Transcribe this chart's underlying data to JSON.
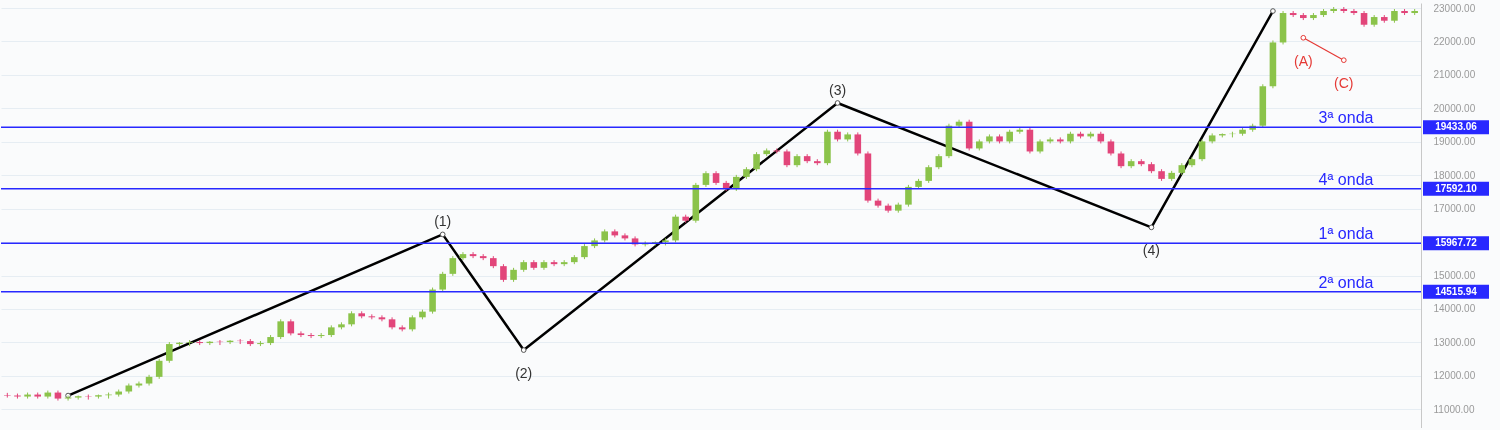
{
  "chart_data": {
    "type": "candlestick",
    "categories": [
      null,
      null,
      null,
      null,
      null,
      null,
      null,
      null,
      null,
      null,
      null,
      null,
      null,
      null,
      null,
      null,
      null,
      null,
      null,
      null,
      null,
      null,
      null,
      null,
      null,
      null,
      null,
      null,
      null,
      null,
      null,
      null,
      null,
      null,
      null,
      null,
      null,
      null,
      null,
      null,
      null,
      null,
      null,
      null,
      null,
      null,
      null,
      null,
      null,
      null,
      null,
      null,
      null,
      null,
      null,
      null,
      null,
      null,
      null,
      null,
      null,
      null,
      null,
      null,
      null,
      null,
      null,
      null,
      null,
      null,
      null,
      null,
      null,
      null,
      null,
      null,
      null,
      null,
      null,
      null,
      null,
      null,
      null,
      null,
      null,
      null,
      null,
      null,
      null,
      null,
      null,
      null,
      null,
      null,
      null,
      null,
      null,
      null,
      null,
      null,
      null,
      null,
      null,
      null,
      null,
      null,
      null,
      null,
      null,
      null,
      null,
      null,
      null,
      null,
      null,
      null,
      null,
      null,
      null,
      null,
      null,
      null,
      null,
      null,
      null,
      null,
      null,
      null,
      null,
      null,
      null,
      null,
      null,
      null,
      null,
      null,
      null,
      null,
      null,
      null
    ],
    "ohlc": [
      [
        11430,
        11490,
        11350,
        11410
      ],
      [
        11410,
        11470,
        11320,
        11380
      ],
      [
        11380,
        11500,
        11320,
        11440
      ],
      [
        11440,
        11500,
        11320,
        11380
      ],
      [
        11380,
        11560,
        11320,
        11500
      ],
      [
        11500,
        11560,
        11260,
        11320
      ],
      [
        11320,
        11410,
        11260,
        11350
      ],
      [
        11350,
        11410,
        11290,
        11390
      ],
      [
        11390,
        11440,
        11290,
        11380
      ],
      [
        11380,
        11440,
        11320,
        11420
      ],
      [
        11420,
        11500,
        11320,
        11440
      ],
      [
        11440,
        11590,
        11380,
        11530
      ],
      [
        11530,
        11770,
        11470,
        11710
      ],
      [
        11710,
        11830,
        11650,
        11770
      ],
      [
        11770,
        12030,
        11710,
        11970
      ],
      [
        11970,
        12510,
        11910,
        12450
      ],
      [
        12450,
        13010,
        12390,
        12950
      ],
      [
        12950,
        13010,
        12890,
        12990
      ],
      [
        12990,
        13070,
        12890,
        13010
      ],
      [
        13010,
        13070,
        12920,
        12980
      ],
      [
        12980,
        13040,
        12920,
        13020
      ],
      [
        13020,
        13070,
        12920,
        13010
      ],
      [
        13010,
        13070,
        12950,
        13050
      ],
      [
        13050,
        13100,
        12950,
        13040
      ],
      [
        13040,
        13100,
        12890,
        12950
      ],
      [
        12950,
        13040,
        12890,
        12980
      ],
      [
        12980,
        13220,
        12920,
        13160
      ],
      [
        13160,
        13690,
        13100,
        13630
      ],
      [
        13630,
        13690,
        13210,
        13270
      ],
      [
        13270,
        13330,
        13160,
        13220
      ],
      [
        13220,
        13280,
        13130,
        13190
      ],
      [
        13190,
        13280,
        13130,
        13220
      ],
      [
        13220,
        13510,
        13160,
        13450
      ],
      [
        13450,
        13600,
        13390,
        13540
      ],
      [
        13540,
        13930,
        13480,
        13870
      ],
      [
        13870,
        13930,
        13720,
        13780
      ],
      [
        13780,
        13840,
        13690,
        13750
      ],
      [
        13750,
        13810,
        13630,
        13690
      ],
      [
        13690,
        13750,
        13390,
        13450
      ],
      [
        13450,
        13510,
        13330,
        13390
      ],
      [
        13390,
        13810,
        13330,
        13750
      ],
      [
        13750,
        13980,
        13690,
        13920
      ],
      [
        13920,
        14640,
        13860,
        14580
      ],
      [
        14580,
        15110,
        14520,
        15050
      ],
      [
        15050,
        15580,
        14990,
        15520
      ],
      [
        15520,
        15700,
        15460,
        15640
      ],
      [
        15640,
        15700,
        15520,
        15580
      ],
      [
        15580,
        15640,
        15460,
        15520
      ],
      [
        15520,
        15580,
        15220,
        15280
      ],
      [
        15280,
        15340,
        14810,
        14870
      ],
      [
        14870,
        15230,
        14810,
        15170
      ],
      [
        15170,
        15460,
        15110,
        15400
      ],
      [
        15400,
        15460,
        15170,
        15230
      ],
      [
        15230,
        15460,
        15170,
        15400
      ],
      [
        15400,
        15460,
        15280,
        15340
      ],
      [
        15340,
        15460,
        15280,
        15400
      ],
      [
        15400,
        15610,
        15340,
        15550
      ],
      [
        15550,
        15940,
        15490,
        15880
      ],
      [
        15880,
        16110,
        15820,
        16050
      ],
      [
        16050,
        16380,
        15990,
        16320
      ],
      [
        16320,
        16380,
        16140,
        16200
      ],
      [
        16200,
        16260,
        16050,
        16110
      ],
      [
        16110,
        16170,
        15870,
        15930
      ],
      [
        15930,
        16020,
        15870,
        15960
      ],
      [
        15960,
        16020,
        15900,
        16000
      ],
      [
        16000,
        16110,
        15900,
        16050
      ],
      [
        16050,
        16820,
        15990,
        16760
      ],
      [
        16760,
        16820,
        16580,
        16640
      ],
      [
        16640,
        17770,
        16580,
        17710
      ],
      [
        17710,
        18120,
        17650,
        18060
      ],
      [
        18060,
        18120,
        17710,
        17770
      ],
      [
        17770,
        17830,
        17530,
        17590
      ],
      [
        17590,
        18010,
        17530,
        17950
      ],
      [
        17950,
        18240,
        17890,
        18180
      ],
      [
        18180,
        18690,
        18120,
        18630
      ],
      [
        18630,
        18800,
        18570,
        18740
      ],
      [
        18740,
        18800,
        18650,
        18710
      ],
      [
        18710,
        18770,
        18240,
        18300
      ],
      [
        18300,
        18630,
        18240,
        18570
      ],
      [
        18570,
        18630,
        18360,
        18420
      ],
      [
        18420,
        18480,
        18300,
        18360
      ],
      [
        18360,
        19360,
        18300,
        19300
      ],
      [
        19300,
        19360,
        19010,
        19070
      ],
      [
        19070,
        19280,
        19010,
        19220
      ],
      [
        19220,
        19280,
        18590,
        18650
      ],
      [
        18650,
        18710,
        17180,
        17240
      ],
      [
        17240,
        17300,
        17030,
        17090
      ],
      [
        17090,
        17150,
        16880,
        16940
      ],
      [
        16940,
        17180,
        16880,
        17120
      ],
      [
        17120,
        17710,
        17060,
        17650
      ],
      [
        17650,
        17890,
        17590,
        17830
      ],
      [
        17830,
        18300,
        17770,
        18240
      ],
      [
        18240,
        18630,
        18180,
        18570
      ],
      [
        18570,
        19540,
        18510,
        19480
      ],
      [
        19480,
        19660,
        19420,
        19600
      ],
      [
        19600,
        19660,
        18740,
        18800
      ],
      [
        18800,
        19070,
        18740,
        19010
      ],
      [
        19010,
        19220,
        18950,
        19160
      ],
      [
        19160,
        19220,
        18950,
        19010
      ],
      [
        19010,
        19360,
        18950,
        19300
      ],
      [
        19300,
        19420,
        19240,
        19360
      ],
      [
        19360,
        19420,
        18650,
        18710
      ],
      [
        18710,
        19070,
        18650,
        19010
      ],
      [
        19010,
        19130,
        18950,
        19070
      ],
      [
        19070,
        19130,
        18950,
        19010
      ],
      [
        19010,
        19300,
        18950,
        19240
      ],
      [
        19240,
        19300,
        19100,
        19160
      ],
      [
        19160,
        19300,
        19100,
        19240
      ],
      [
        19240,
        19300,
        18950,
        19010
      ],
      [
        19010,
        19070,
        18590,
        18650
      ],
      [
        18650,
        18710,
        18210,
        18270
      ],
      [
        18270,
        18480,
        18210,
        18420
      ],
      [
        18420,
        18480,
        18270,
        18330
      ],
      [
        18330,
        18390,
        18060,
        18120
      ],
      [
        18120,
        18180,
        17830,
        17890
      ],
      [
        17890,
        18130,
        17830,
        18070
      ],
      [
        18070,
        18360,
        18010,
        18300
      ],
      [
        18300,
        18540,
        18240,
        18480
      ],
      [
        18480,
        19070,
        18420,
        19010
      ],
      [
        19010,
        19250,
        18950,
        19190
      ],
      [
        19190,
        19250,
        19130,
        19230
      ],
      [
        19230,
        19300,
        19130,
        19240
      ],
      [
        19240,
        19420,
        19180,
        19360
      ],
      [
        19360,
        19540,
        19300,
        19480
      ],
      [
        19480,
        20720,
        19420,
        20660
      ],
      [
        20660,
        22030,
        20600,
        21970
      ],
      [
        21970,
        22910,
        21910,
        22850
      ],
      [
        22850,
        22910,
        22730,
        22790
      ],
      [
        22790,
        22850,
        22640,
        22700
      ],
      [
        22700,
        22850,
        22640,
        22790
      ],
      [
        22790,
        22970,
        22730,
        22910
      ],
      [
        22910,
        23030,
        22850,
        22970
      ],
      [
        22970,
        23030,
        22850,
        22910
      ],
      [
        22910,
        22970,
        22790,
        22850
      ],
      [
        22850,
        22910,
        22440,
        22500
      ],
      [
        22500,
        22790,
        22440,
        22730
      ],
      [
        22730,
        22790,
        22560,
        22620
      ],
      [
        22620,
        22970,
        22560,
        22910
      ],
      [
        22910,
        22970,
        22790,
        22850
      ],
      [
        22850,
        22970,
        22790,
        22910
      ]
    ],
    "series": [
      {
        "type": "line",
        "color": "#000000",
        "values": [
          null,
          null,
          null,
          null,
          null,
          null,
          11410,
          null,
          null,
          null,
          null,
          null,
          null,
          null,
          null,
          null,
          null,
          null,
          null,
          null,
          null,
          null,
          null,
          null,
          null,
          null,
          null,
          null,
          null,
          null,
          null,
          null,
          null,
          null,
          null,
          null,
          null,
          null,
          null,
          null,
          null,
          null,
          null,
          16230,
          null,
          null,
          null,
          null,
          null,
          null,
          null,
          12770,
          null,
          null,
          null,
          null,
          null,
          null,
          null,
          null,
          null,
          null,
          null,
          null,
          null,
          null,
          null,
          null,
          null,
          null,
          null,
          null,
          null,
          null,
          null,
          null,
          null,
          null,
          null,
          null,
          null,
          null,
          20160,
          null,
          null,
          null,
          null,
          null,
          null,
          null,
          null,
          null,
          null,
          null,
          null,
          null,
          null,
          null,
          null,
          null,
          null,
          null,
          null,
          null,
          null,
          null,
          null,
          null,
          null,
          null,
          null,
          null,
          null,
          16440,
          null,
          null,
          null,
          null,
          null,
          null,
          null,
          null,
          null,
          null,
          null,
          22910,
          null,
          null,
          null,
          null,
          null,
          null,
          null,
          null,
          null,
          null,
          null,
          null,
          null,
          null
        ]
      },
      {
        "type": "line",
        "color": "#e53935",
        "values": [
          null,
          null,
          null,
          null,
          null,
          null,
          null,
          null,
          null,
          null,
          null,
          null,
          null,
          null,
          null,
          null,
          null,
          null,
          null,
          null,
          null,
          null,
          null,
          null,
          null,
          null,
          null,
          null,
          null,
          null,
          null,
          null,
          null,
          null,
          null,
          null,
          null,
          null,
          null,
          null,
          null,
          null,
          null,
          null,
          null,
          null,
          null,
          null,
          null,
          null,
          null,
          null,
          null,
          null,
          null,
          null,
          null,
          null,
          null,
          null,
          null,
          null,
          null,
          null,
          null,
          null,
          null,
          null,
          null,
          null,
          null,
          null,
          null,
          null,
          null,
          null,
          null,
          null,
          null,
          null,
          null,
          null,
          null,
          null,
          null,
          null,
          null,
          null,
          null,
          null,
          null,
          null,
          null,
          null,
          null,
          null,
          null,
          null,
          null,
          null,
          null,
          null,
          null,
          null,
          null,
          null,
          null,
          null,
          null,
          null,
          null,
          null,
          null,
          null,
          null,
          null,
          null,
          null,
          null,
          null,
          null,
          null,
          null,
          null,
          null,
          null,
          null,
          null,
          22110,
          null,
          null,
          null,
          21440,
          null,
          null,
          null,
          null,
          null,
          null,
          null
        ]
      }
    ],
    "annotations": [
      {
        "text": "(1)",
        "y": 16230
      },
      {
        "text": "(2)",
        "y": 12770
      },
      {
        "text": "(3)",
        "y": 20160
      },
      {
        "text": "(4)",
        "y": 16440
      },
      {
        "text": "(A)",
        "y": 22110
      },
      {
        "text": "(C)",
        "y": 21440
      },
      "19433.06",
      "17592.10",
      "15967.72",
      "14515.94"
    ],
    "ylim": [
      10440,
      23150
    ],
    "yticks": [
      {
        "value": 11000,
        "label": "11000.00"
      },
      {
        "value": 12000,
        "label": "12000.00"
      },
      {
        "value": 13000,
        "label": "13000.00"
      },
      {
        "value": 14000,
        "label": "14000.00"
      },
      {
        "value": 15000,
        "label": "15000.00"
      },
      {
        "value": 16000,
        "label": null
      },
      {
        "value": 17000,
        "label": "17000.00"
      },
      {
        "value": 18000,
        "label": "18000.00"
      },
      {
        "value": 19000,
        "label": "19000.00"
      },
      {
        "value": 20000,
        "label": "20000.00"
      },
      {
        "value": 21000,
        "label": "21000.00"
      },
      {
        "value": 22000,
        "label": "22000.00"
      },
      {
        "value": 23000,
        "label": "23000.00"
      }
    ],
    "ref_lines": [
      {
        "axis": "y",
        "value": 19433.06,
        "label": "3ª onda",
        "color": "#2828ff"
      },
      {
        "axis": "y",
        "value": 17592.1,
        "label": "4ª onda",
        "color": "#2828ff"
      },
      {
        "axis": "y",
        "value": 15967.72,
        "label": "1ª onda",
        "color": "#2828ff"
      },
      {
        "axis": "y",
        "value": 14515.94,
        "label": "2ª onda",
        "color": "#2828ff"
      }
    ],
    "tick_labels": "y",
    "grid": "y",
    "marker": "circle"
  }
}
